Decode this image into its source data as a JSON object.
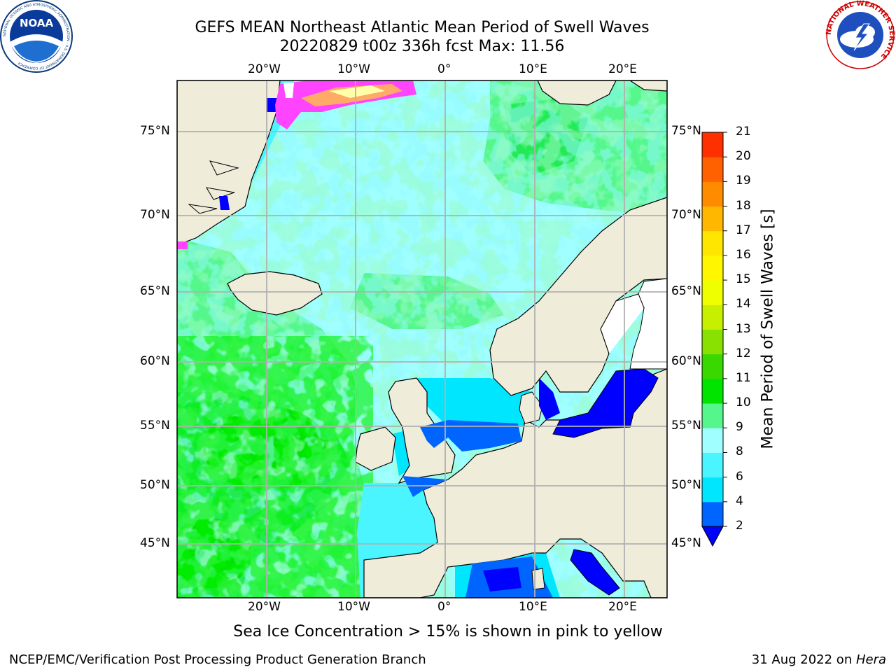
{
  "title_line1": "GEFS MEAN Northeast Atlantic Mean Period of Swell Waves",
  "title_line2": "20220829 t00z 336h fcst   Max: 11.56",
  "logos": {
    "noaa_text": "NOAA",
    "noaa_ring": "NATIONAL OCEANIC AND ATMOSPHERIC ADMINISTRATION · U.S. DEPARTMENT OF COMMERCE",
    "nws_ring": "NATIONAL WEATHER SERVICE"
  },
  "map": {
    "lon_labels": [
      "20°W",
      "10°W",
      "0°",
      "10°E",
      "20°E"
    ],
    "lat_labels": [
      "75°N",
      "70°N",
      "65°N",
      "60°N",
      "55°N",
      "50°N",
      "45°N"
    ],
    "colors": {
      "land": "#efecda",
      "grid": "#b0b0b0",
      "ice_pink": "#ff44ff",
      "ice_yellow": "#ffffaa"
    }
  },
  "colorbar": {
    "title": "Mean Period of Swell Waves [s]",
    "ticks": [
      "2",
      "4",
      "6",
      "8",
      "9",
      "10",
      "11",
      "12",
      "13",
      "14",
      "15",
      "16",
      "17",
      "18",
      "19",
      "20",
      "21"
    ],
    "colors": [
      "#0064ff",
      "#00e6ff",
      "#4bf5ff",
      "#a0ffff",
      "#55f78c",
      "#00e400",
      "#39d800",
      "#88e100",
      "#c7f000",
      "#efff00",
      "#fff700",
      "#ffe600",
      "#ffb700",
      "#ff8c00",
      "#ff6000",
      "#ff3000"
    ],
    "under_color": "#0000ff"
  },
  "sea_ice_note": "Sea Ice Concentration > 15% is shown in pink to yellow",
  "credit": "NCEP/EMC/Verification Post Processing Product Generation Branch",
  "date_text": "31 Aug 2022 on ",
  "machine": "Hera"
}
